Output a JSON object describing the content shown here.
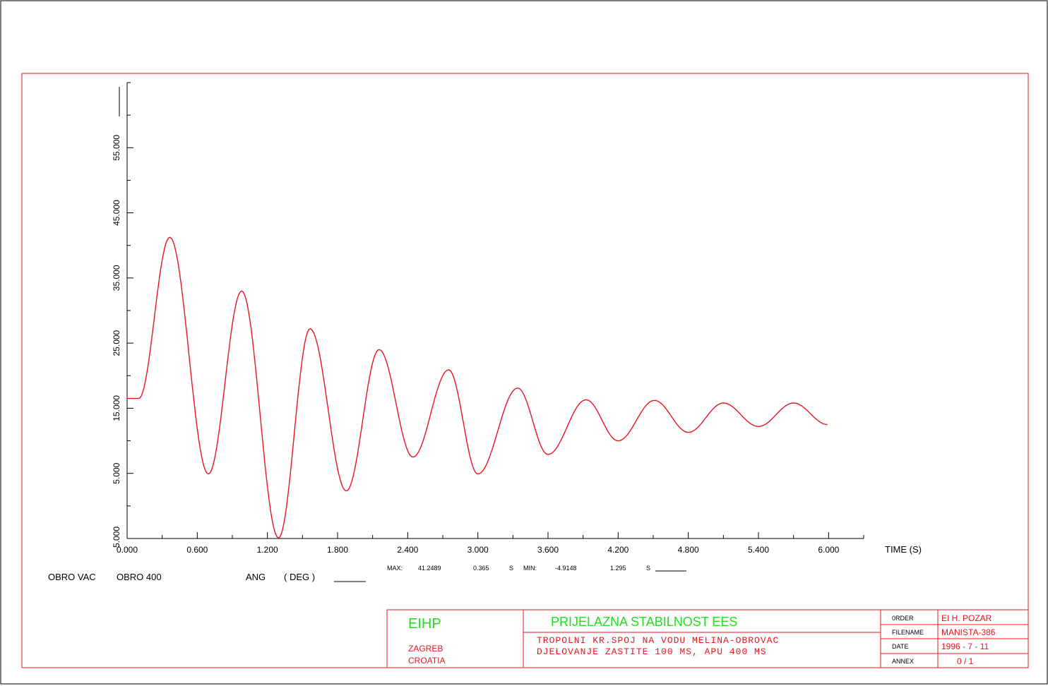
{
  "labels": {
    "time_axis": "TIME (S)",
    "signal_station": "OBRO VAC",
    "signal_bus": "OBRO  400",
    "signal_quantity": "ANG",
    "signal_unit": "( DEG    )",
    "max_label": "MAX:",
    "max_value": "41.2489",
    "max_time": "0.365",
    "max_time_unit": "S",
    "min_label": "MIN:",
    "min_value": "-4.9148",
    "min_time": "1.295",
    "min_time_unit": "S"
  },
  "title_block": {
    "org": "EIHP",
    "city": "ZAGREB",
    "country": "CROATIA",
    "title": "PRIJELAZNA STABILNOST EES",
    "desc_line1": "TROPOLNI KR.SPOJ  NA VODU MELINA-OBROVAC",
    "desc_line2": "DJELOVANJE ZASTITE 100 MS, APU 400 MS",
    "order_label": "0RDER",
    "order_value": "EI H. POZAR",
    "filename_label": "FILENAME",
    "filename_value": "MANISTA-386",
    "date_label": "DATE",
    "date_value": "1996   -  7  -  11",
    "annex_label": "ANNEX",
    "annex_value": "0 /      1"
  },
  "colors": {
    "curve": "#e8141e",
    "frame": "#e8141e",
    "green_text": "#22dd22",
    "axis": "#000000"
  },
  "chart_data": {
    "type": "line",
    "xlabel": "TIME (S)",
    "ylabel": "",
    "xlim": [
      0.0,
      6.3
    ],
    "ylim": [
      -5.0,
      65.0
    ],
    "x_ticks": [
      0.0,
      0.6,
      1.2,
      1.8,
      2.4,
      3.0,
      3.6,
      4.2,
      4.8,
      5.4,
      6.0
    ],
    "x_tick_labels": [
      "0.000",
      "0.600",
      "1.200",
      "1.800",
      "2.400",
      "3.000",
      "3.600",
      "4.200",
      "4.800",
      "5.400",
      "6.000"
    ],
    "y_ticks": [
      -5.0,
      5.0,
      15.0,
      25.0,
      35.0,
      45.0,
      55.0
    ],
    "y_tick_labels": [
      "-5.000",
      "5.000",
      "15.000",
      "25.000",
      "35.000",
      "45.000",
      "55.000"
    ],
    "grid": false,
    "series": [
      {
        "x": [
          0.0,
          0.1,
          0.365,
          0.695,
          0.98,
          1.295,
          1.565,
          1.875,
          2.155,
          2.445,
          2.75,
          3.0,
          3.34,
          3.6,
          3.925,
          4.2,
          4.51,
          4.8,
          5.1,
          5.4,
          5.7,
          5.99
        ],
        "y": [
          16.5,
          16.5,
          41.25,
          4.9,
          33.0,
          -4.91,
          27.2,
          2.3,
          24.0,
          7.5,
          20.9,
          4.9,
          18.1,
          7.9,
          16.3,
          10.0,
          16.2,
          11.3,
          15.8,
          12.2,
          15.8,
          12.5
        ]
      }
    ]
  }
}
